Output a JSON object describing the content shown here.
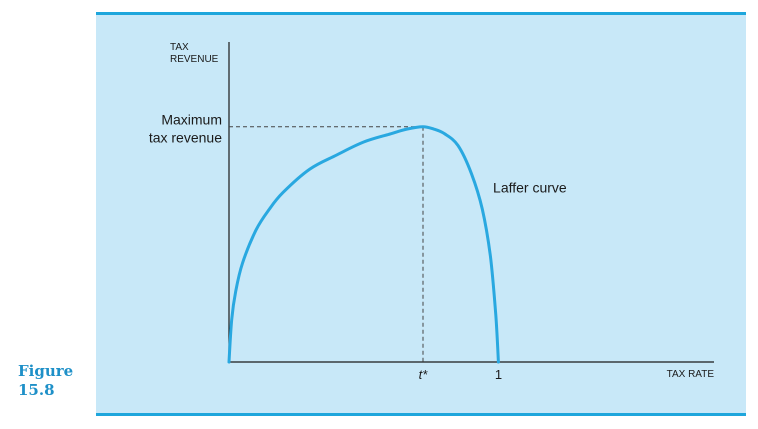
{
  "figure": {
    "word": "Figure",
    "number": "15.8"
  },
  "chart_data": {
    "type": "line",
    "xlabel": "TAX RATE",
    "ylabel_lines": [
      "TAX",
      "REVENUE"
    ],
    "x_ticks": [
      {
        "value": 0.72,
        "label": "t*"
      },
      {
        "value": 1.0,
        "label": "1"
      }
    ],
    "xlim": [
      0,
      1.8
    ],
    "ylim": [
      0,
      1.36
    ],
    "series": [
      {
        "name": "Laffer curve",
        "points": [
          [
            0.0,
            0.0
          ],
          [
            0.01,
            0.18
          ],
          [
            0.025,
            0.3
          ],
          [
            0.05,
            0.42
          ],
          [
            0.1,
            0.56
          ],
          [
            0.15,
            0.65
          ],
          [
            0.2,
            0.72
          ],
          [
            0.3,
            0.82
          ],
          [
            0.4,
            0.88
          ],
          [
            0.5,
            0.935
          ],
          [
            0.6,
            0.97
          ],
          [
            0.66,
            0.99
          ],
          [
            0.72,
            1.0
          ],
          [
            0.76,
            0.99
          ],
          [
            0.8,
            0.97
          ],
          [
            0.85,
            0.92
          ],
          [
            0.9,
            0.8
          ],
          [
            0.94,
            0.65
          ],
          [
            0.97,
            0.45
          ],
          [
            0.99,
            0.2
          ],
          [
            1.0,
            0.0
          ]
        ]
      }
    ],
    "annotations": {
      "max_label_lines": [
        "Maximum",
        "tax revenue"
      ],
      "max_point": [
        0.72,
        1.0
      ],
      "curve_label": "Laffer curve",
      "curve_label_pos": [
        0.98,
        0.72
      ]
    },
    "colors": {
      "curve": "#29a8e0",
      "axis": "#1a1a1a",
      "dashed": "#444444"
    },
    "grid": false
  }
}
